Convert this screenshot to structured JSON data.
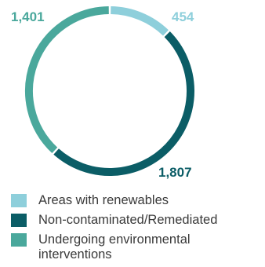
{
  "chart_data": {
    "type": "pie",
    "variant": "donut",
    "series": [
      {
        "name": "Areas with renewables",
        "value": 454,
        "label": "454",
        "color": "#8ecfdb"
      },
      {
        "name": "Non-contaminated/Remediated",
        "value": 1807,
        "label": "1,807",
        "color": "#0b5d66"
      },
      {
        "name": "Undergoing environmental interventions",
        "value": 1401,
        "label": "1,401",
        "color": "#4aa89c"
      }
    ],
    "legend_position": "bottom"
  }
}
